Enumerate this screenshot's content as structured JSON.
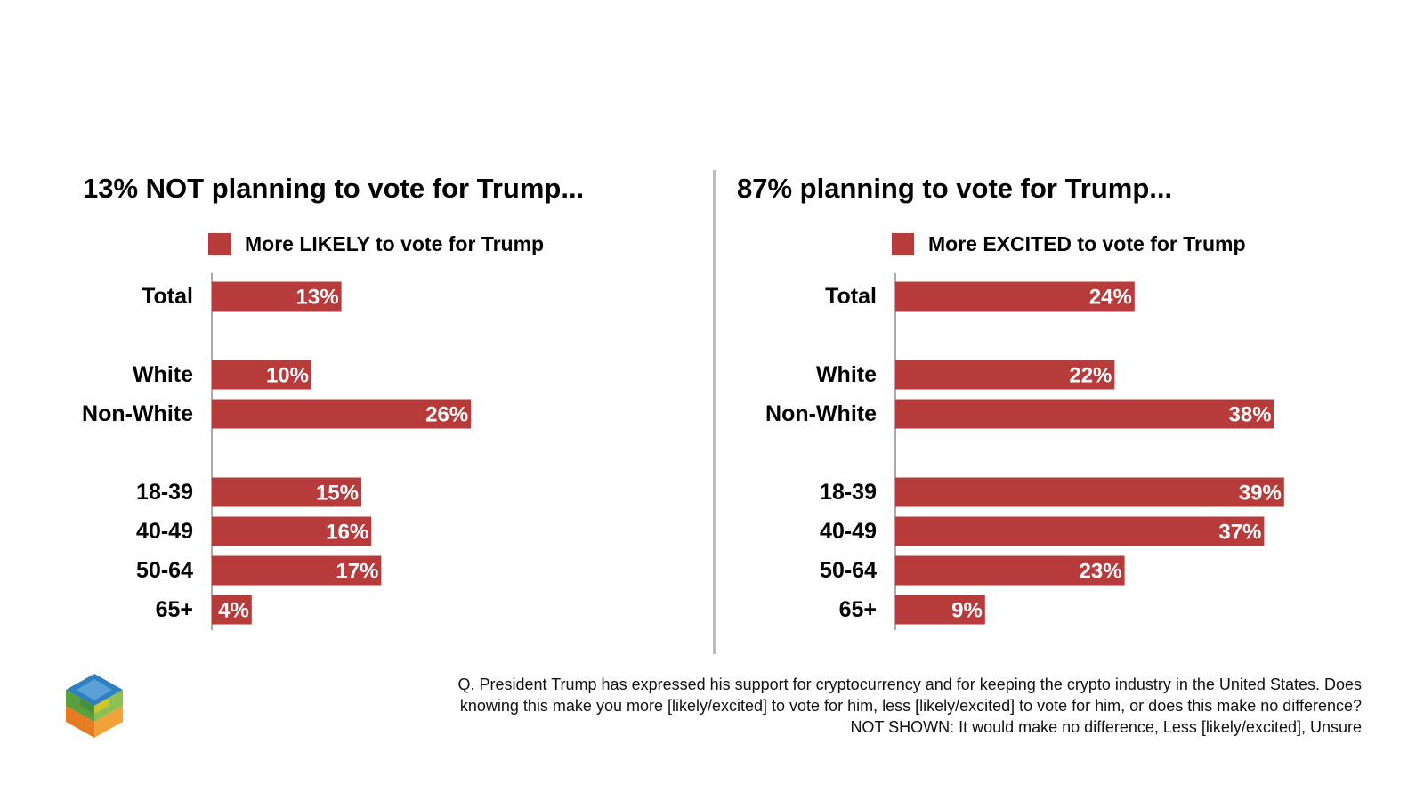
{
  "colors": {
    "bar": "#b83b3b",
    "axis": "#555555",
    "divider": "#bdbdbd",
    "bar_label": "#ffffff"
  },
  "chart_data": [
    {
      "type": "bar",
      "orientation": "horizontal",
      "title": "13% NOT planning to vote for Trump...",
      "legend": "More LIKELY to vote for Trump",
      "legend_placement": "top",
      "categories": [
        "Total",
        "White",
        "Non-White",
        "18-39",
        "40-49",
        "50-64",
        "65+"
      ],
      "groups": [
        [
          "Total"
        ],
        [
          "White",
          "Non-White"
        ],
        [
          "18-39",
          "40-49",
          "50-64",
          "65+"
        ]
      ],
      "values": [
        13,
        10,
        26,
        15,
        16,
        17,
        4
      ],
      "value_labels": [
        "13%",
        "10%",
        "26%",
        "15%",
        "16%",
        "17%",
        "4%"
      ],
      "unit": "%",
      "xlim": [
        0,
        40
      ],
      "grid": false
    },
    {
      "type": "bar",
      "orientation": "horizontal",
      "title": "87% planning to vote for Trump...",
      "legend": "More EXCITED to vote for Trump",
      "legend_placement": "top",
      "categories": [
        "Total",
        "White",
        "Non-White",
        "18-39",
        "40-49",
        "50-64",
        "65+"
      ],
      "groups": [
        [
          "Total"
        ],
        [
          "White",
          "Non-White"
        ],
        [
          "18-39",
          "40-49",
          "50-64",
          "65+"
        ]
      ],
      "values": [
        24,
        22,
        38,
        39,
        37,
        23,
        9
      ],
      "value_labels": [
        "24%",
        "22%",
        "38%",
        "39%",
        "37%",
        "23%",
        "9%"
      ],
      "unit": "%",
      "xlim": [
        0,
        40
      ],
      "grid": false
    }
  ],
  "footnote": {
    "line1": "Q. President Trump has expressed his support for cryptocurrency and for keeping the crypto industry in the United States. Does",
    "line2": "knowing this make you more [likely/excited] to vote for him, less [likely/excited] to vote for him, or does this make no difference?",
    "line3": "NOT SHOWN: It would make no difference, Less [likely/excited], Unsure"
  },
  "logo": {
    "icon": "cube-logo-icon"
  }
}
